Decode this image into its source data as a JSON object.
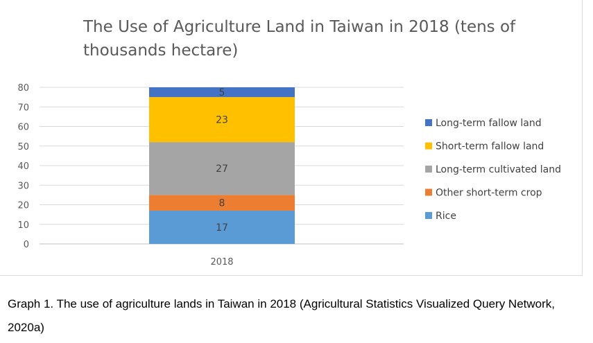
{
  "chart_data": {
    "type": "bar",
    "stacked": true,
    "title": "The Use of Agriculture Land in Taiwan in 2018 (tens of thousands hectare)",
    "categories": [
      "2018"
    ],
    "series": [
      {
        "name": "Rice",
        "values": [
          17
        ],
        "color": "#5b9bd5"
      },
      {
        "name": "Other short-term crop",
        "values": [
          8
        ],
        "color": "#ed7d31"
      },
      {
        "name": "Long-term cultivated land",
        "values": [
          27
        ],
        "color": "#a5a5a5"
      },
      {
        "name": "Short-term fallow land",
        "values": [
          23
        ],
        "color": "#ffc000"
      },
      {
        "name": "Long-term fallow land",
        "values": [
          5
        ],
        "color": "#4472c4"
      }
    ],
    "ylim": [
      0,
      80
    ],
    "yticks": [
      0,
      10,
      20,
      30,
      40,
      50,
      60,
      70,
      80
    ],
    "grid": true,
    "legend": "right"
  },
  "caption": "Graph 1. The use of agriculture lands in Taiwan in 2018 (Agricultural Statistics Visualized Query Network, 2020a)"
}
